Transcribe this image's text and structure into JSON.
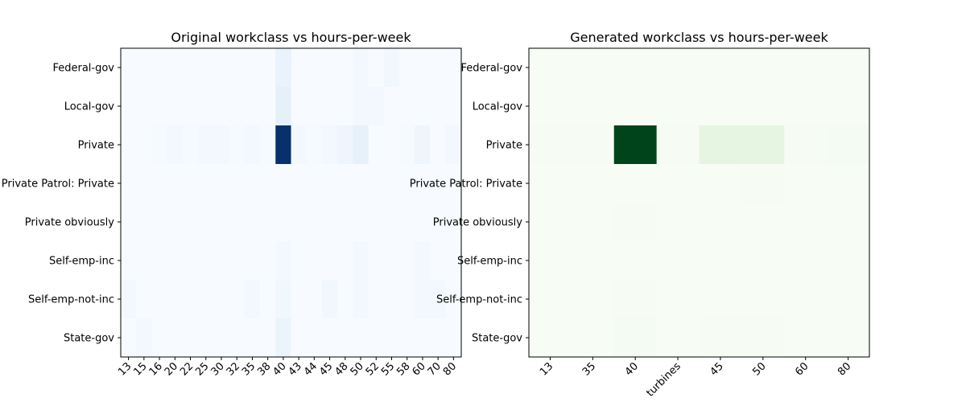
{
  "chart_data": [
    {
      "type": "heatmap",
      "title": "Original workclass vs hours-per-week",
      "colormap": "Blues",
      "y_categories": [
        "Federal-gov",
        "Local-gov",
        "Private",
        "Private Patrol: Private",
        "Private obviously",
        "Self-emp-inc",
        "Self-emp-not-inc",
        "State-gov"
      ],
      "x_categories": [
        "13",
        "15",
        "16",
        "20",
        "22",
        "25",
        "30",
        "32",
        "35",
        "38",
        "40",
        "43",
        "44",
        "45",
        "48",
        "50",
        "52",
        "55",
        "58",
        "60",
        "70",
        "80"
      ],
      "values": [
        [
          0,
          0,
          0,
          0,
          0,
          0,
          0,
          0,
          0,
          0,
          6,
          0,
          0,
          0,
          0,
          2,
          0,
          3,
          0,
          0,
          0,
          0
        ],
        [
          0,
          0,
          0,
          0,
          0,
          0,
          0,
          0,
          0,
          0,
          8,
          0,
          0,
          0,
          0,
          2,
          2,
          0,
          0,
          0,
          0,
          0
        ],
        [
          0,
          0,
          1,
          2,
          1,
          2,
          2,
          1,
          2,
          1,
          90,
          2,
          1,
          2,
          4,
          7,
          0,
          0,
          1,
          4,
          0,
          2
        ],
        [
          0,
          0,
          0,
          0,
          0,
          0,
          0,
          0,
          0,
          0,
          0,
          0,
          0,
          0,
          0,
          0,
          0,
          0,
          0,
          0,
          0,
          0
        ],
        [
          0,
          0,
          0,
          0,
          0,
          0,
          0,
          0,
          0,
          0,
          0,
          0,
          0,
          0,
          0,
          0,
          0,
          0,
          0,
          0,
          0,
          0
        ],
        [
          0,
          0,
          0,
          0,
          0,
          0,
          0,
          0,
          0,
          0,
          2,
          0,
          0,
          0,
          0,
          2,
          0,
          0,
          0,
          2,
          0,
          0
        ],
        [
          2,
          0,
          0,
          0,
          0,
          0,
          0,
          0,
          2,
          0,
          3,
          0,
          0,
          3,
          0,
          2,
          0,
          0,
          0,
          2,
          2,
          0
        ],
        [
          0,
          2,
          0,
          0,
          0,
          0,
          0,
          0,
          0,
          0,
          5,
          0,
          0,
          0,
          0,
          0,
          0,
          0,
          0,
          0,
          0,
          0
        ]
      ],
      "vmax": 90
    },
    {
      "type": "heatmap",
      "title": "Generated workclass vs hours-per-week",
      "colormap": "Greens",
      "y_categories": [
        "Federal-gov",
        "Local-gov",
        "Private",
        "Private Patrol: Private",
        "Private obviously",
        "Self-emp-inc",
        "Self-emp-not-inc",
        "State-gov"
      ],
      "x_categories": [
        "13",
        "35",
        "40",
        "turbines",
        "45",
        "50",
        "60",
        "80"
      ],
      "values": [
        [
          0,
          0,
          0,
          0,
          0,
          0,
          0,
          0
        ],
        [
          0,
          0,
          0,
          0,
          0,
          0,
          0,
          0
        ],
        [
          1,
          1,
          100,
          1,
          12,
          12,
          1,
          2
        ],
        [
          0,
          0,
          0,
          0,
          0,
          1,
          0,
          0
        ],
        [
          0,
          0,
          1,
          0,
          0,
          0,
          0,
          0
        ],
        [
          0,
          0,
          0,
          0,
          0,
          0,
          0,
          0
        ],
        [
          0,
          0,
          1,
          0,
          0,
          0,
          0,
          0
        ],
        [
          0,
          0,
          2,
          0,
          1,
          1,
          0,
          0
        ]
      ],
      "vmax": 100
    }
  ]
}
